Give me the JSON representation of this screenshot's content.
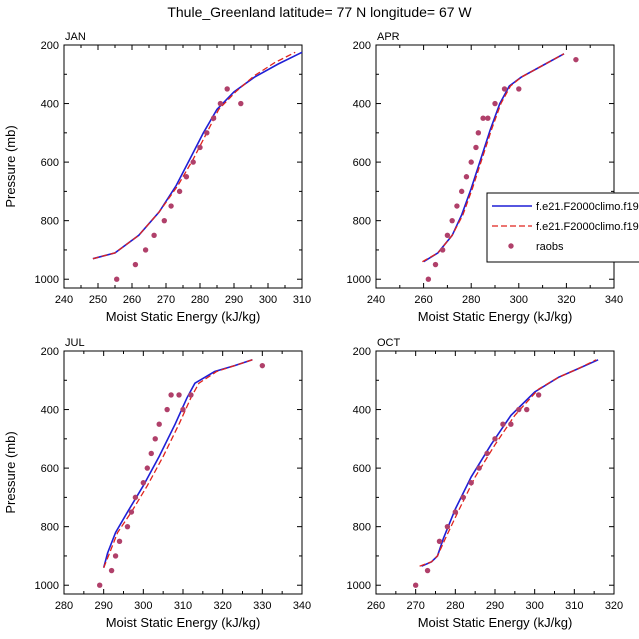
{
  "figure_title": "Thule_Greenland  latitude= 77 N longitude= 67 W",
  "colors": {
    "model1": "#1f1fd6",
    "model2": "#e0231c",
    "raobs": "#b0406a",
    "axis": "#000000"
  },
  "legend": {
    "entries": [
      {
        "label": "f.e21.F2000climo.f19",
        "style": "solid",
        "color": "#1f1fd6"
      },
      {
        "label": "f.e21.F2000climo.f19",
        "style": "dashed",
        "color": "#e0231c"
      },
      {
        "label": "raobs",
        "style": "marker",
        "color": "#b0406a"
      }
    ],
    "placement": "right of APR panel"
  },
  "chart_data": [
    {
      "type": "line",
      "title": "JAN",
      "xlabel": "Moist Static Energy (kJ/kg)",
      "ylabel": "Pressure (mb)",
      "xlim": [
        240,
        310
      ],
      "ylim": [
        1030,
        200
      ],
      "xticks": [
        240,
        250,
        260,
        270,
        280,
        290,
        300,
        310
      ],
      "yticks": [
        200,
        400,
        600,
        800,
        1000
      ],
      "series": [
        {
          "name": "f.e21.F2000climo.f19",
          "style": "solid",
          "color": "#1f1fd6",
          "x": [
            248.5,
            255,
            262,
            268,
            273,
            277,
            281,
            285,
            290,
            296,
            303,
            310
          ],
          "y": [
            930,
            910,
            850,
            770,
            680,
            590,
            500,
            420,
            360,
            310,
            265,
            225
          ]
        },
        {
          "name": "f.e21.F2000climo.f19",
          "style": "dashed",
          "color": "#e0231c",
          "x": [
            248.5,
            255,
            262,
            268,
            273.5,
            278,
            282,
            285.5,
            290.5,
            296,
            302,
            308
          ],
          "y": [
            930,
            910,
            850,
            770,
            680,
            590,
            500,
            420,
            360,
            305,
            260,
            225
          ]
        },
        {
          "name": "raobs",
          "style": "marker",
          "color": "#b0406a",
          "x": [
            255.5,
            261,
            264,
            266.5,
            269.5,
            271.5,
            274,
            276,
            278,
            280,
            282,
            284,
            286,
            288,
            292
          ],
          "y": [
            1000,
            950,
            900,
            850,
            800,
            750,
            700,
            650,
            600,
            550,
            500,
            450,
            400,
            350,
            400
          ]
        }
      ]
    },
    {
      "type": "line",
      "title": "APR",
      "xlabel": "Moist Static Energy (kJ/kg)",
      "ylabel": "",
      "xlim": [
        240,
        340
      ],
      "ylim": [
        1030,
        200
      ],
      "xticks": [
        240,
        260,
        280,
        300,
        320,
        340
      ],
      "yticks": [
        200,
        400,
        600,
        800,
        1000
      ],
      "series": [
        {
          "name": "f.e21.F2000climo.f19",
          "style": "solid",
          "color": "#1f1fd6",
          "x": [
            260,
            266,
            272,
            276,
            280,
            284,
            288,
            292,
            296,
            301,
            310,
            319
          ],
          "y": [
            940,
            910,
            850,
            780,
            690,
            590,
            490,
            400,
            340,
            310,
            270,
            230
          ]
        },
        {
          "name": "f.e21.F2000climo.f19",
          "style": "dashed",
          "color": "#e0231c",
          "x": [
            259.5,
            266,
            272,
            276.5,
            280.5,
            284.5,
            288.5,
            292.5,
            296.5,
            301,
            310,
            319
          ],
          "y": [
            940,
            910,
            850,
            780,
            690,
            590,
            490,
            400,
            340,
            310,
            270,
            230
          ]
        },
        {
          "name": "raobs",
          "style": "marker",
          "color": "#b0406a",
          "x": [
            262,
            265,
            268,
            270,
            272,
            274,
            276,
            278,
            280,
            282,
            283,
            285,
            287,
            290,
            294,
            300,
            324
          ],
          "y": [
            1000,
            950,
            900,
            850,
            800,
            750,
            700,
            650,
            600,
            550,
            500,
            450,
            450,
            400,
            350,
            350,
            250
          ]
        }
      ]
    },
    {
      "type": "line",
      "title": "JUL",
      "xlabel": "Moist Static Energy (kJ/kg)",
      "ylabel": "Pressure (mb)",
      "xlim": [
        280,
        340
      ],
      "ylim": [
        1030,
        200
      ],
      "xticks": [
        280,
        290,
        300,
        310,
        320,
        330,
        340
      ],
      "yticks": [
        200,
        400,
        600,
        800,
        1000
      ],
      "series": [
        {
          "name": "f.e21.F2000climo.f19",
          "style": "solid",
          "color": "#1f1fd6",
          "x": [
            290,
            291,
            293,
            296,
            300,
            304,
            308,
            311,
            313,
            318,
            323,
            327.5
          ],
          "y": [
            940,
            890,
            820,
            750,
            660,
            560,
            450,
            360,
            310,
            270,
            250,
            230
          ]
        },
        {
          "name": "f.e21.F2000climo.f19",
          "style": "dashed",
          "color": "#e0231c",
          "x": [
            290,
            291.5,
            293.5,
            297,
            301,
            305,
            309,
            312,
            314,
            318.5,
            323,
            327.5
          ],
          "y": [
            940,
            890,
            820,
            750,
            660,
            560,
            450,
            360,
            310,
            270,
            250,
            230
          ]
        },
        {
          "name": "raobs",
          "style": "marker",
          "color": "#b0406a",
          "x": [
            289,
            292,
            293,
            294,
            296,
            297,
            298,
            300,
            301,
            302,
            303,
            304,
            306,
            307,
            309,
            310,
            312,
            330
          ],
          "y": [
            1000,
            950,
            900,
            850,
            800,
            750,
            700,
            650,
            600,
            550,
            500,
            450,
            400,
            350,
            350,
            400,
            350,
            250
          ]
        }
      ]
    },
    {
      "type": "line",
      "title": "OCT",
      "xlabel": "Moist Static Energy (kJ/kg)",
      "ylabel": "",
      "xlim": [
        260,
        320
      ],
      "ylim": [
        1030,
        200
      ],
      "xticks": [
        260,
        270,
        280,
        290,
        300,
        310,
        320
      ],
      "yticks": [
        200,
        400,
        600,
        800,
        1000
      ],
      "series": [
        {
          "name": "f.e21.F2000climo.f19",
          "style": "solid",
          "color": "#1f1fd6",
          "x": [
            271.5,
            274,
            275.5,
            277,
            280,
            284,
            289,
            294,
            300,
            306,
            311,
            316
          ],
          "y": [
            935,
            920,
            900,
            840,
            740,
            630,
            520,
            420,
            340,
            290,
            260,
            230
          ]
        },
        {
          "name": "f.e21.F2000climo.f19",
          "style": "dashed",
          "color": "#e0231c",
          "x": [
            271,
            274,
            275.5,
            277.5,
            281,
            285,
            290,
            295,
            301,
            306,
            311,
            315.5
          ],
          "y": [
            935,
            920,
            900,
            840,
            740,
            630,
            520,
            420,
            330,
            290,
            260,
            230
          ]
        },
        {
          "name": "raobs",
          "style": "marker",
          "color": "#b0406a",
          "x": [
            270,
            273,
            276,
            278,
            280,
            282,
            284,
            286,
            288,
            290,
            292,
            294,
            296,
            298,
            301
          ],
          "y": [
            1000,
            950,
            850,
            800,
            750,
            700,
            650,
            600,
            550,
            500,
            450,
            450,
            400,
            400,
            350
          ]
        }
      ]
    }
  ]
}
